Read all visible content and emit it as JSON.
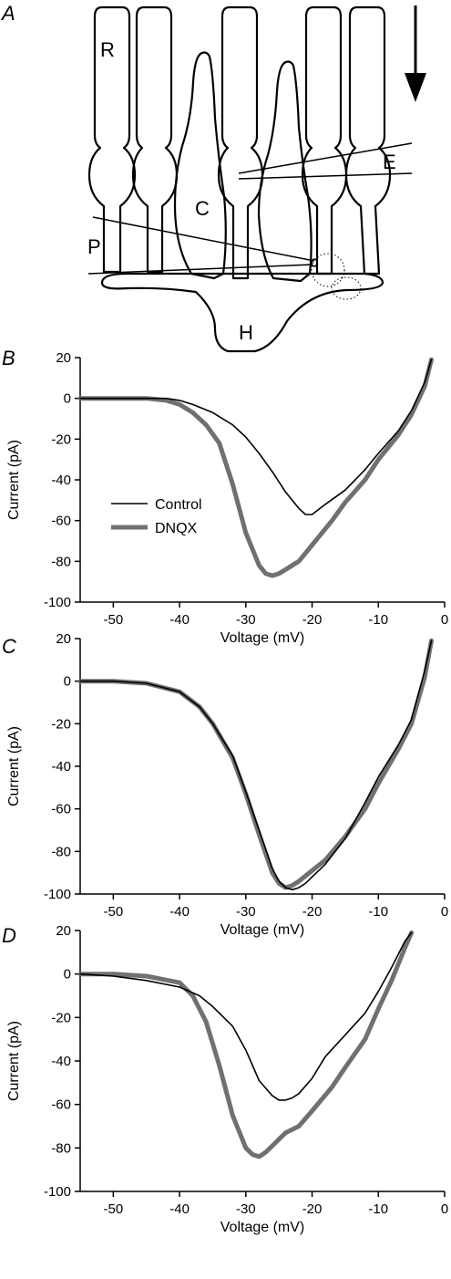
{
  "schematic": {
    "panel_label": "A",
    "labels": {
      "rod": "R",
      "cone": "C",
      "electrode": "E",
      "pipette": "P",
      "horizontal": "H"
    }
  },
  "colors": {
    "control": "#000000",
    "dnqx": "#707070",
    "axes": "#000000"
  },
  "chart_data": [
    {
      "type": "line",
      "panel_label": "B",
      "xlabel": "Voltage (mV)",
      "ylabel": "Current (pA)",
      "xlim": [
        -55,
        0
      ],
      "ylim": [
        -100,
        20
      ],
      "xticks": [
        -50,
        -40,
        -30,
        -20,
        -10,
        0
      ],
      "yticks": [
        20,
        0,
        -20,
        -40,
        -60,
        -80,
        -100
      ],
      "legend": {
        "position": "middle-left",
        "entries": [
          "Control",
          "DNQX"
        ]
      },
      "series": [
        {
          "name": "Control",
          "x": [
            -55,
            -50,
            -45,
            -42,
            -40,
            -38,
            -35,
            -32,
            -30,
            -28,
            -26,
            -24,
            -22,
            -21,
            -20,
            -18,
            -15,
            -12,
            -10,
            -7,
            -5,
            -3,
            -2
          ],
          "y": [
            0,
            0,
            0,
            0,
            -1,
            -3,
            -7,
            -13,
            -19,
            -27,
            -36,
            -46,
            -54,
            -57,
            -57,
            -52,
            -45,
            -35,
            -27,
            -16,
            -6,
            8,
            19
          ]
        },
        {
          "name": "DNQX",
          "x": [
            -55,
            -50,
            -45,
            -42,
            -40,
            -38,
            -36,
            -34,
            -32,
            -30,
            -28,
            -27,
            -26,
            -25,
            -24,
            -22,
            -20,
            -17,
            -15,
            -12,
            -10,
            -7,
            -5,
            -3,
            -2
          ],
          "y": [
            0,
            0,
            0,
            -1,
            -3,
            -7,
            -13,
            -22,
            -42,
            -66,
            -82,
            -86,
            -87,
            -86,
            -84,
            -80,
            -72,
            -60,
            -51,
            -40,
            -30,
            -18,
            -8,
            6,
            19
          ]
        }
      ]
    },
    {
      "type": "line",
      "panel_label": "C",
      "xlabel": "Voltage (mV)",
      "ylabel": "Current (pA)",
      "xlim": [
        -55,
        0
      ],
      "ylim": [
        -100,
        20
      ],
      "xticks": [
        -50,
        -40,
        -30,
        -20,
        -10,
        0
      ],
      "yticks": [
        20,
        0,
        -20,
        -40,
        -60,
        -80,
        -100
      ],
      "series": [
        {
          "name": "Control",
          "x": [
            -55,
            -50,
            -45,
            -40,
            -37,
            -35,
            -32,
            -30,
            -28,
            -26,
            -25,
            -24,
            -23,
            -22,
            -21,
            -20,
            -18,
            -15,
            -12,
            -10,
            -7,
            -5,
            -3,
            -2
          ],
          "y": [
            0,
            0,
            -1,
            -5,
            -12,
            -20,
            -35,
            -52,
            -70,
            -88,
            -94,
            -97,
            -98,
            -97,
            -95,
            -92,
            -86,
            -74,
            -57,
            -45,
            -30,
            -18,
            5,
            19
          ]
        },
        {
          "name": "DNQX",
          "x": [
            -55,
            -50,
            -45,
            -40,
            -37,
            -35,
            -32,
            -30,
            -28,
            -26,
            -25,
            -24,
            -23,
            -22,
            -20,
            -18,
            -15,
            -12,
            -10,
            -7,
            -5,
            -3,
            -2
          ],
          "y": [
            0,
            0,
            -1,
            -5,
            -12,
            -20,
            -36,
            -53,
            -72,
            -90,
            -95,
            -97,
            -96,
            -94,
            -89,
            -84,
            -73,
            -60,
            -48,
            -32,
            -20,
            2,
            19
          ]
        }
      ]
    },
    {
      "type": "line",
      "panel_label": "D",
      "xlabel": "Voltage (mV)",
      "ylabel": "Current (pA)",
      "xlim": [
        -55,
        0
      ],
      "ylim": [
        -100,
        20
      ],
      "xticks": [
        -50,
        -40,
        -30,
        -20,
        -10,
        0
      ],
      "yticks": [
        20,
        0,
        -20,
        -40,
        -60,
        -80,
        -100
      ],
      "series": [
        {
          "name": "Control",
          "x": [
            -55,
            -50,
            -45,
            -40,
            -37,
            -35,
            -32,
            -30,
            -28,
            -26,
            -25,
            -24,
            -23,
            -22,
            -20,
            -18,
            -15,
            -12,
            -10,
            -8,
            -6,
            -5
          ],
          "y": [
            0,
            -1,
            -3,
            -6,
            -10,
            -15,
            -24,
            -35,
            -49,
            -56,
            -58,
            -58,
            -57,
            -55,
            -48,
            -38,
            -28,
            -18,
            -8,
            3,
            15,
            19
          ]
        },
        {
          "name": "DNQX",
          "x": [
            -55,
            -50,
            -45,
            -40,
            -38,
            -36,
            -34,
            -32,
            -30,
            -29,
            -28,
            -27,
            -26,
            -25,
            -24,
            -22,
            -20,
            -17,
            -15,
            -12,
            -10,
            -8,
            -6,
            -5
          ],
          "y": [
            0,
            0,
            -1,
            -4,
            -10,
            -22,
            -42,
            -65,
            -80,
            -83,
            -84,
            -82,
            -79,
            -76,
            -73,
            -70,
            -63,
            -52,
            -43,
            -30,
            -16,
            -3,
            12,
            19
          ]
        }
      ]
    }
  ]
}
